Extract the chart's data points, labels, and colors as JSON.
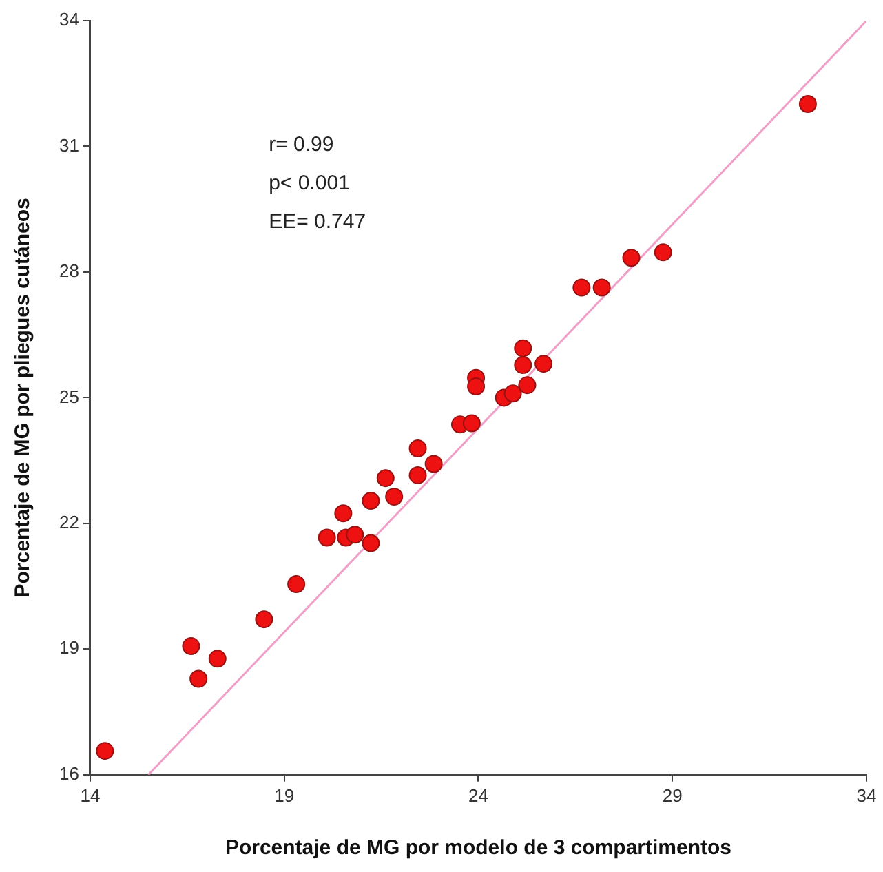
{
  "chart_data": {
    "type": "scatter",
    "xlabel": "Porcentaje de MG por modelo de 3 compartimentos",
    "ylabel": "Porcentaje de MG por pliegues cutáneos",
    "annotations": [
      "r= 0.99",
      "p< 0.001",
      "EE= 0.747"
    ],
    "xlim": [
      14,
      34
    ],
    "xticks": [
      14,
      19,
      24,
      29,
      34
    ],
    "ylim": [
      16,
      34
    ],
    "yticks": [
      16,
      19,
      22,
      25,
      28,
      31,
      34
    ],
    "grid": false,
    "legend": false,
    "series": [
      {
        "marker": "circle",
        "color": "#ee1111",
        "x": [
          14.38,
          16.6,
          16.79,
          17.28,
          18.48,
          19.31,
          20.1,
          20.52,
          20.59,
          20.82,
          21.23,
          21.23,
          21.83,
          21.61,
          22.44,
          22.44,
          22.85,
          23.53,
          23.83,
          23.94,
          23.94,
          24.66,
          24.89,
          25.26,
          25.15,
          25.15,
          25.68,
          26.66,
          27.18,
          27.94,
          28.76,
          32.49
        ],
        "values": [
          16.57,
          19.07,
          18.29,
          18.77,
          19.71,
          20.55,
          21.66,
          22.24,
          21.66,
          21.73,
          21.53,
          22.54,
          22.64,
          23.08,
          23.15,
          23.79,
          23.42,
          24.36,
          24.39,
          25.47,
          25.27,
          25.0,
          25.1,
          25.3,
          26.18,
          25.78,
          25.81,
          27.63,
          27.63,
          28.34,
          28.47,
          32.01
        ]
      },
      {
        "type": "line",
        "marker": "none",
        "color": "#f0a0c8",
        "line_style": "solid",
        "x": [
          15.5,
          34
        ],
        "values": [
          16,
          34
        ]
      }
    ]
  }
}
